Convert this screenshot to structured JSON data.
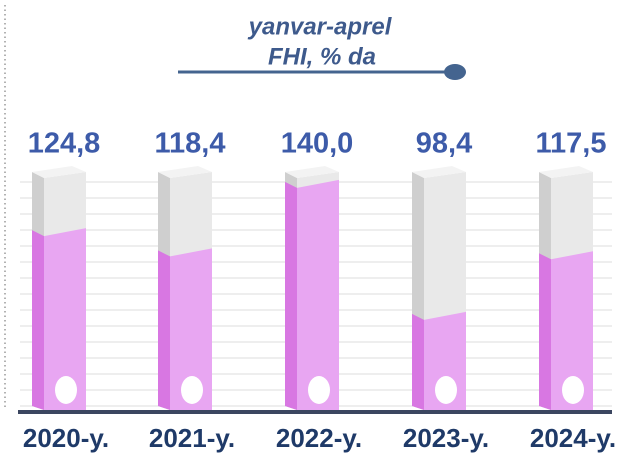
{
  "chart_data": {
    "type": "bar",
    "title": [
      "yanvar-aprel",
      "FHI, % da"
    ],
    "categories": [
      "2020-y.",
      "2021-y.",
      "2022-y.",
      "2023-y.",
      "2024-y."
    ],
    "values": [
      124.8,
      118.4,
      140.0,
      98.4,
      117.5
    ],
    "value_labels": [
      "124,8",
      "118,4",
      "140,0",
      "98,4",
      "117,5"
    ],
    "color": "#e8a6f2",
    "ylim": [
      70,
      145
    ],
    "grid": true
  }
}
